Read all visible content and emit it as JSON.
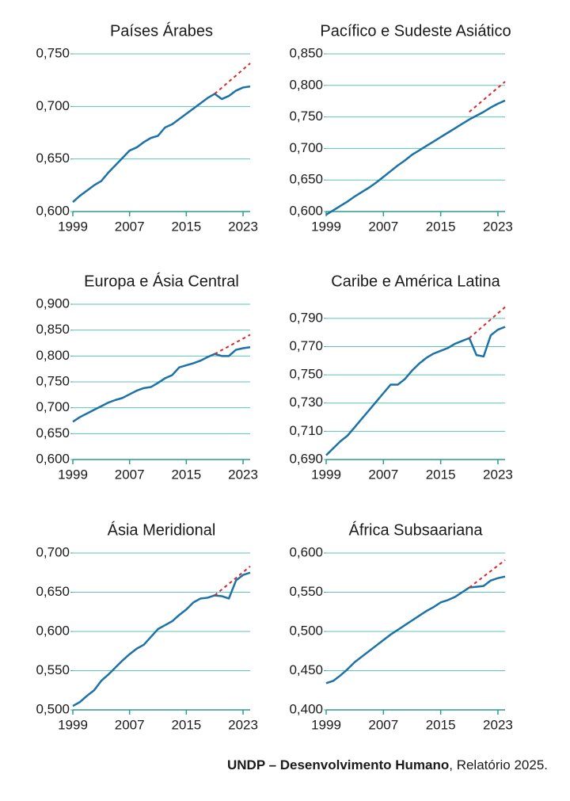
{
  "chart_data": [
    {
      "type": "line",
      "title": "Países Árabes",
      "x": [
        1999,
        2000,
        2001,
        2002,
        2003,
        2004,
        2005,
        2006,
        2007,
        2008,
        2009,
        2010,
        2011,
        2012,
        2013,
        2014,
        2015,
        2016,
        2017,
        2018,
        2019,
        2020,
        2021,
        2022,
        2023,
        2024
      ],
      "series": [
        {
          "color": "#1b72a8",
          "values": [
            0.609,
            0.615,
            0.62,
            0.625,
            0.629,
            0.637,
            0.644,
            0.651,
            0.658,
            0.661,
            0.666,
            0.67,
            0.672,
            0.68,
            0.683,
            0.688,
            0.693,
            0.698,
            0.703,
            0.708,
            0.712,
            0.707,
            0.71,
            0.715,
            0.718,
            0.719
          ]
        },
        {
          "color": "#d9262b",
          "style": "dashed",
          "x": [
            2019,
            2024
          ],
          "values": [
            0.712,
            0.741
          ]
        }
      ],
      "xlim": [
        1999,
        2024
      ],
      "xticks": [
        1999,
        2007,
        2015,
        2023
      ],
      "ylim": [
        0.6,
        0.75
      ],
      "yticks": [
        {
          "value": 0.6,
          "label": "0,600"
        },
        {
          "value": 0.65,
          "label": "0,650"
        },
        {
          "value": 0.7,
          "label": "0,700"
        },
        {
          "value": 0.75,
          "label": "0,750"
        }
      ],
      "grid": true
    },
    {
      "type": "line",
      "title": "Pacífico e Sudeste Asiático",
      "x": [
        1999,
        2000,
        2001,
        2002,
        2003,
        2004,
        2005,
        2006,
        2007,
        2008,
        2009,
        2010,
        2011,
        2012,
        2013,
        2014,
        2015,
        2016,
        2017,
        2018,
        2019,
        2020,
        2021,
        2022,
        2023,
        2024
      ],
      "series": [
        {
          "color": "#1b72a8",
          "values": [
            0.595,
            0.602,
            0.609,
            0.616,
            0.624,
            0.631,
            0.638,
            0.646,
            0.655,
            0.664,
            0.673,
            0.681,
            0.69,
            0.697,
            0.704,
            0.711,
            0.718,
            0.725,
            0.732,
            0.739,
            0.746,
            0.752,
            0.758,
            0.765,
            0.771,
            0.776
          ]
        },
        {
          "color": "#d9262b",
          "style": "dashed",
          "x": [
            2019,
            2024
          ],
          "values": [
            0.758,
            0.806
          ]
        }
      ],
      "xlim": [
        1999,
        2024
      ],
      "xticks": [
        1999,
        2007,
        2015,
        2023
      ],
      "ylim": [
        0.6,
        0.85
      ],
      "yticks": [
        {
          "value": 0.6,
          "label": "0,600"
        },
        {
          "value": 0.65,
          "label": "0,650"
        },
        {
          "value": 0.7,
          "label": "0,700"
        },
        {
          "value": 0.75,
          "label": "0,750"
        },
        {
          "value": 0.8,
          "label": "0,800"
        },
        {
          "value": 0.85,
          "label": "0,850"
        }
      ],
      "grid": true
    },
    {
      "type": "line",
      "title": "Europa e Ásia Central",
      "x": [
        1999,
        2000,
        2001,
        2002,
        2003,
        2004,
        2005,
        2006,
        2007,
        2008,
        2009,
        2010,
        2011,
        2012,
        2013,
        2014,
        2015,
        2016,
        2017,
        2018,
        2019,
        2020,
        2021,
        2022,
        2023,
        2024
      ],
      "series": [
        {
          "color": "#1b72a8",
          "values": [
            0.673,
            0.682,
            0.689,
            0.696,
            0.703,
            0.71,
            0.715,
            0.719,
            0.726,
            0.733,
            0.738,
            0.74,
            0.748,
            0.757,
            0.763,
            0.778,
            0.782,
            0.786,
            0.791,
            0.798,
            0.804,
            0.8,
            0.8,
            0.812,
            0.815,
            0.817
          ]
        },
        {
          "color": "#d9262b",
          "style": "dashed",
          "x": [
            2019,
            2024
          ],
          "values": [
            0.804,
            0.841
          ]
        }
      ],
      "xlim": [
        1999,
        2024
      ],
      "xticks": [
        1999,
        2007,
        2015,
        2023
      ],
      "ylim": [
        0.6,
        0.9
      ],
      "yticks": [
        {
          "value": 0.6,
          "label": "0,600"
        },
        {
          "value": 0.65,
          "label": "0,650"
        },
        {
          "value": 0.7,
          "label": "0,700"
        },
        {
          "value": 0.75,
          "label": "0,750"
        },
        {
          "value": 0.8,
          "label": "0,800"
        },
        {
          "value": 0.85,
          "label": "0,850"
        },
        {
          "value": 0.9,
          "label": "0,900"
        }
      ],
      "grid": true
    },
    {
      "type": "line",
      "title": "Caribe e América Latina",
      "x": [
        1999,
        2000,
        2001,
        2002,
        2003,
        2004,
        2005,
        2006,
        2007,
        2008,
        2009,
        2010,
        2011,
        2012,
        2013,
        2014,
        2015,
        2016,
        2017,
        2018,
        2019,
        2020,
        2021,
        2022,
        2023,
        2024
      ],
      "series": [
        {
          "color": "#1b72a8",
          "values": [
            0.693,
            0.698,
            0.703,
            0.707,
            0.713,
            0.719,
            0.725,
            0.731,
            0.737,
            0.743,
            0.743,
            0.747,
            0.753,
            0.758,
            0.762,
            0.765,
            0.767,
            0.769,
            0.772,
            0.774,
            0.776,
            0.764,
            0.763,
            0.778,
            0.782,
            0.784
          ]
        },
        {
          "color": "#d9262b",
          "style": "dashed",
          "x": [
            2019,
            2024
          ],
          "values": [
            0.776,
            0.798
          ]
        }
      ],
      "xlim": [
        1999,
        2024
      ],
      "xticks": [
        1999,
        2007,
        2015,
        2023
      ],
      "ylim": [
        0.69,
        0.8
      ],
      "yticks": [
        {
          "value": 0.69,
          "label": "0,690"
        },
        {
          "value": 0.71,
          "label": "0,710"
        },
        {
          "value": 0.73,
          "label": "0,730"
        },
        {
          "value": 0.75,
          "label": "0,750"
        },
        {
          "value": 0.77,
          "label": "0,770"
        },
        {
          "value": 0.79,
          "label": "0,790"
        }
      ],
      "grid": true
    },
    {
      "type": "line",
      "title": "Ásia Meridional",
      "x": [
        1999,
        2000,
        2001,
        2002,
        2003,
        2004,
        2005,
        2006,
        2007,
        2008,
        2009,
        2010,
        2011,
        2012,
        2013,
        2014,
        2015,
        2016,
        2017,
        2018,
        2019,
        2020,
        2021,
        2022,
        2023,
        2024
      ],
      "series": [
        {
          "color": "#1b72a8",
          "values": [
            0.505,
            0.51,
            0.518,
            0.525,
            0.537,
            0.545,
            0.554,
            0.563,
            0.571,
            0.578,
            0.583,
            0.593,
            0.603,
            0.608,
            0.613,
            0.621,
            0.628,
            0.637,
            0.642,
            0.643,
            0.646,
            0.645,
            0.642,
            0.665,
            0.672,
            0.675
          ]
        },
        {
          "color": "#d9262b",
          "style": "dashed",
          "x": [
            2019,
            2024
          ],
          "values": [
            0.646,
            0.683
          ]
        }
      ],
      "xlim": [
        1999,
        2024
      ],
      "xticks": [
        1999,
        2007,
        2015,
        2023
      ],
      "ylim": [
        0.5,
        0.7
      ],
      "yticks": [
        {
          "value": 0.5,
          "label": "0,500"
        },
        {
          "value": 0.55,
          "label": "0,550"
        },
        {
          "value": 0.6,
          "label": "0,600"
        },
        {
          "value": 0.65,
          "label": "0,650"
        },
        {
          "value": 0.7,
          "label": "0,700"
        }
      ],
      "grid": true
    },
    {
      "type": "line",
      "title": "África Subsaariana",
      "x": [
        1999,
        2000,
        2001,
        2002,
        2003,
        2004,
        2005,
        2006,
        2007,
        2008,
        2009,
        2010,
        2011,
        2012,
        2013,
        2014,
        2015,
        2016,
        2017,
        2018,
        2019,
        2020,
        2021,
        2022,
        2023,
        2024
      ],
      "series": [
        {
          "color": "#1b72a8",
          "values": [
            0.434,
            0.437,
            0.444,
            0.452,
            0.461,
            0.468,
            0.475,
            0.482,
            0.489,
            0.496,
            0.502,
            0.508,
            0.514,
            0.52,
            0.526,
            0.531,
            0.537,
            0.54,
            0.544,
            0.55,
            0.556,
            0.557,
            0.558,
            0.565,
            0.568,
            0.57
          ]
        },
        {
          "color": "#d9262b",
          "style": "dashed",
          "x": [
            2019,
            2024
          ],
          "values": [
            0.556,
            0.591
          ]
        }
      ],
      "xlim": [
        1999,
        2024
      ],
      "xticks": [
        1999,
        2007,
        2015,
        2023
      ],
      "ylim": [
        0.4,
        0.6
      ],
      "yticks": [
        {
          "value": 0.4,
          "label": "0,400"
        },
        {
          "value": 0.45,
          "label": "0,450"
        },
        {
          "value": 0.5,
          "label": "0,500"
        },
        {
          "value": 0.55,
          "label": "0,550"
        },
        {
          "value": 0.6,
          "label": "0,600"
        }
      ],
      "grid": true
    }
  ],
  "source": {
    "author": "UNDP – Desenvolvimento Humano",
    "text": ", Relatório 2025."
  }
}
